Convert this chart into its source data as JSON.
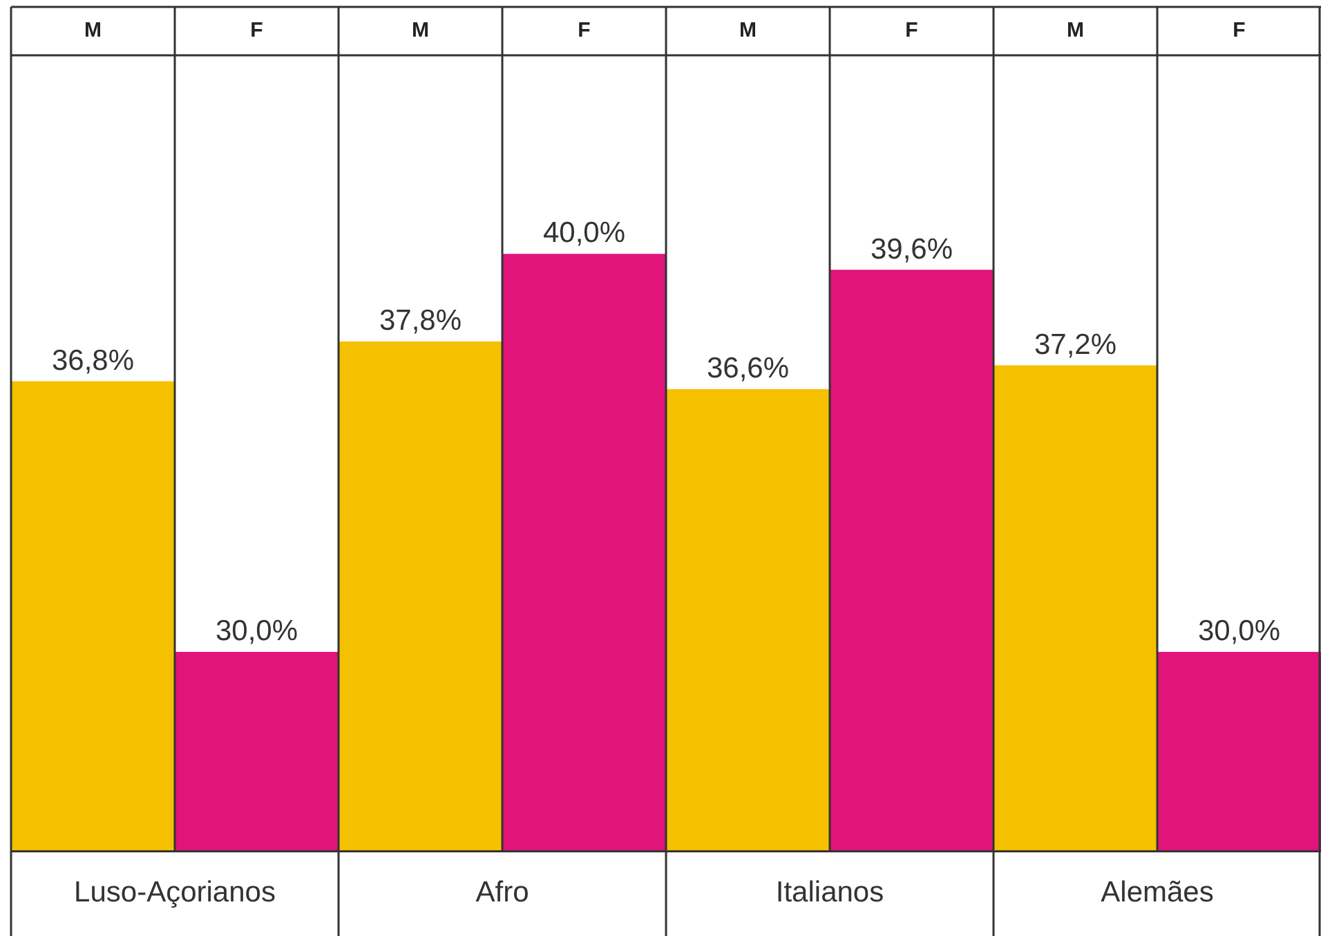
{
  "chart_data": {
    "type": "bar",
    "categories": [
      "Luso-Açorianos",
      "Afro",
      "Italianos",
      "Alemães"
    ],
    "series": [
      {
        "name": "M",
        "color": "#f5c000",
        "values": [
          36.8,
          37.8,
          36.6,
          37.2
        ],
        "value_labels": [
          "36,8%",
          "37,8%",
          "36,6%",
          "37,2%"
        ]
      },
      {
        "name": "F",
        "color": "#e0147a",
        "values": [
          30.0,
          40.0,
          39.6,
          30.0
        ],
        "value_labels": [
          "30,0%",
          "40,0%",
          "39,6%",
          "30,0%"
        ]
      }
    ],
    "ylim": [
      25,
      45
    ],
    "grid": "x",
    "legend": false
  }
}
